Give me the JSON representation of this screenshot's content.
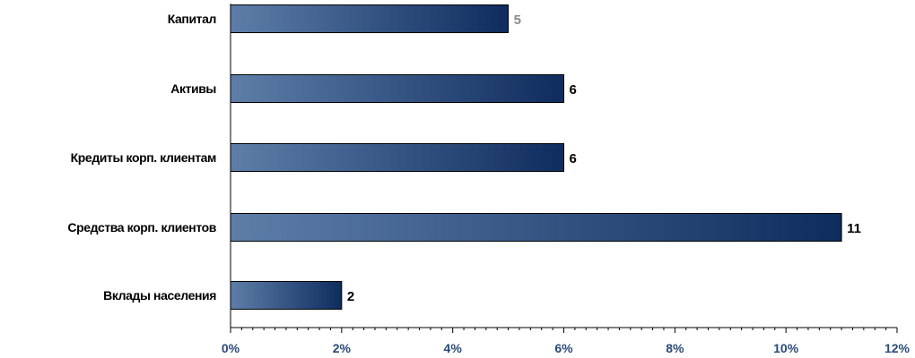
{
  "chart_data": {
    "type": "bar",
    "orientation": "horizontal",
    "categories": [
      "Капитал",
      "Активы",
      "Кредиты корп. клиентам",
      "Средства корп. клиентов",
      "Вклады населения"
    ],
    "values": [
      5,
      6,
      6,
      11,
      2
    ],
    "value_labels": [
      "5",
      "6",
      "6",
      "11",
      "2"
    ],
    "x_ticks": [
      "0%",
      "2%",
      "4%",
      "6%",
      "8%",
      "10%",
      "12%"
    ],
    "xlim": [
      0,
      12
    ],
    "title": "",
    "xlabel": "",
    "ylabel": "",
    "grid": false,
    "legend": "none",
    "colors": {
      "bar_light": "#5e7ea8",
      "bar_dark": "#0f2c5e",
      "tick_label": "#2b4a78",
      "first_value_label": "#8a8a8a",
      "value_label": "#000000"
    }
  }
}
